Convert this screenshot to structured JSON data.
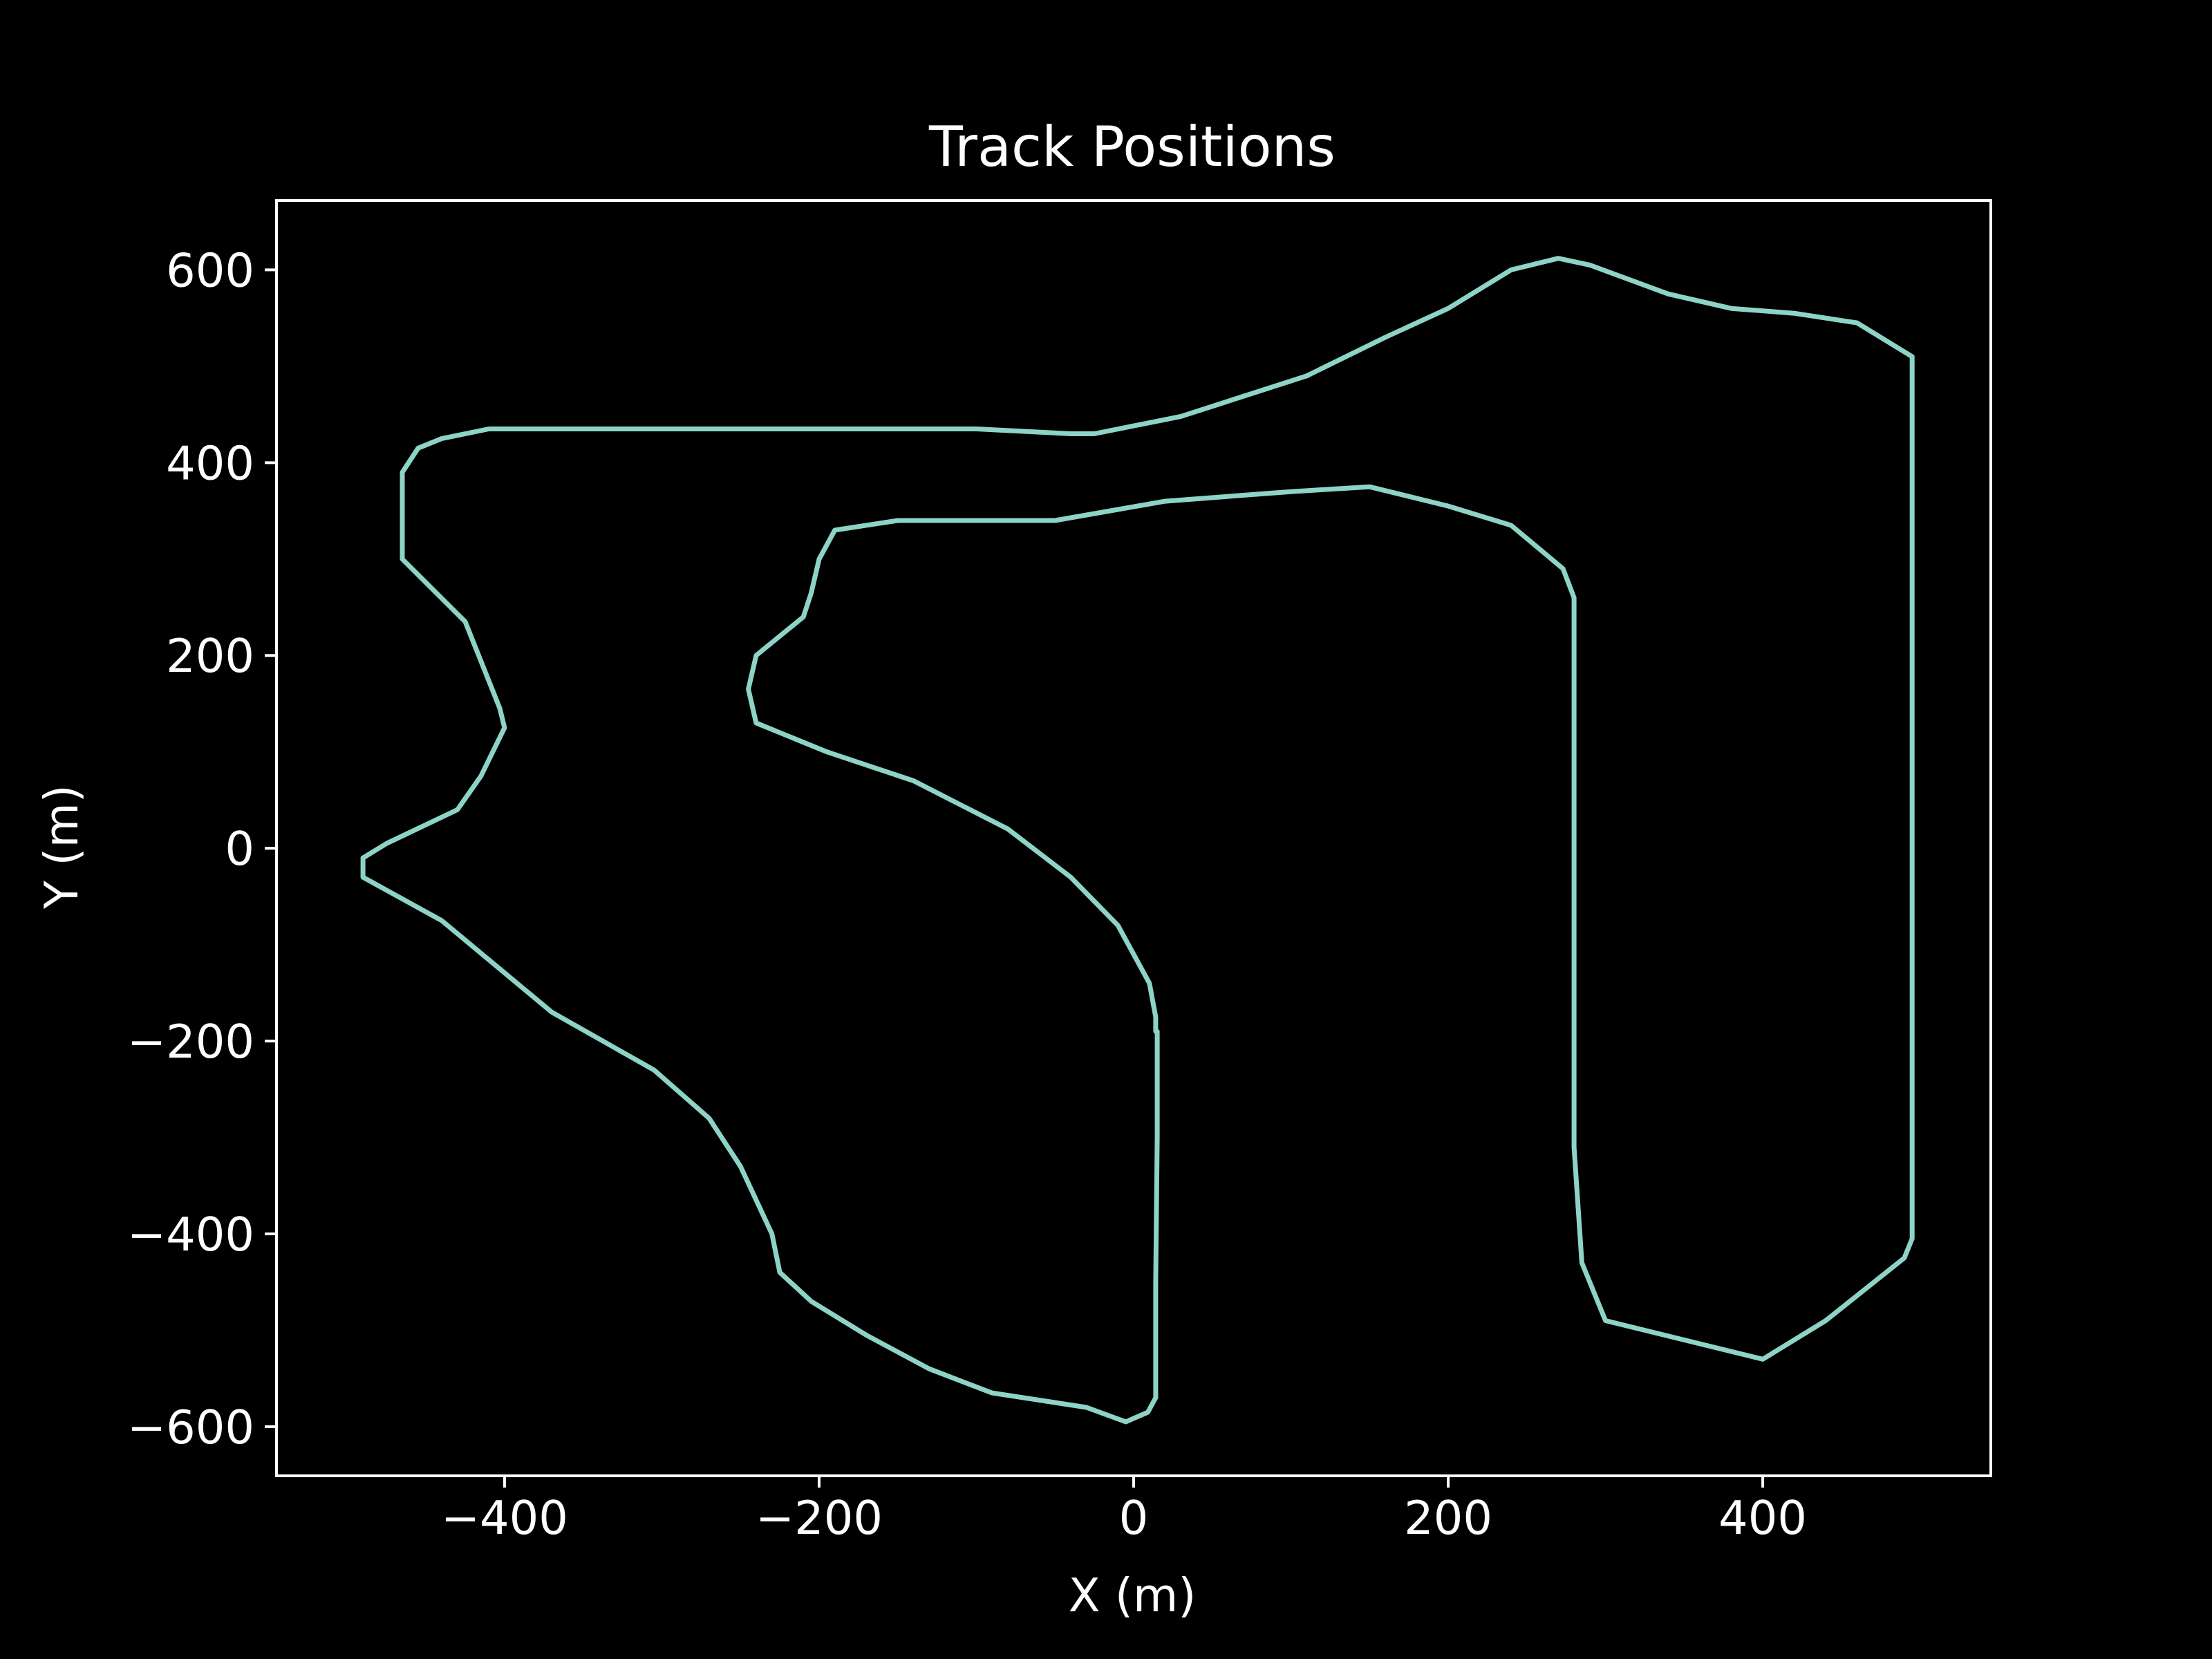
{
  "chart_data": {
    "type": "line",
    "title": "Track Positions",
    "xlabel": "X (m)",
    "ylabel": "Y (m)",
    "xlim": [
      -545,
      545
    ],
    "ylim": [
      -651,
      672
    ],
    "xticks": [
      -400,
      -200,
      0,
      200,
      400
    ],
    "yticks": [
      -600,
      -400,
      -200,
      0,
      200,
      400,
      600
    ],
    "xtick_labels": [
      "−400",
      "−200",
      "0",
      "200",
      "400"
    ],
    "ytick_labels": [
      "−600",
      "−400",
      "−200",
      "0",
      "200",
      "400",
      "600"
    ],
    "grid": false,
    "line_color": "#8dd3c7",
    "background_color": "#000000",
    "foreground_color": "#ffffff",
    "series": [
      {
        "x": [
          15,
          15,
          14,
          14,
          9,
          -5,
          -30,
          -90,
          -130,
          -170,
          -205,
          -225,
          -230,
          -250,
          -270,
          -305,
          -370,
          -440,
          -490,
          -490,
          -475,
          -430,
          -415,
          -400,
          -403,
          -425,
          -465,
          -465,
          -465,
          -455,
          -440,
          -410,
          -300,
          -100,
          -40,
          -25,
          30,
          110,
          160,
          200,
          240,
          270,
          290,
          340,
          380,
          420,
          460,
          495,
          495,
          495,
          495,
          490,
          440,
          400,
          300,
          285,
          280,
          280,
          280,
          280,
          273,
          240,
          200,
          150,
          100,
          20,
          -50,
          -100,
          -150,
          -190,
          -200,
          -205,
          -210,
          -240,
          -245,
          -240,
          -195,
          -140,
          -80,
          -40,
          -10,
          10,
          14,
          14
        ],
        "y": [
          -190,
          -300,
          -450,
          -570,
          -585,
          -595,
          -580,
          -565,
          -540,
          -505,
          -470,
          -440,
          -400,
          -330,
          -280,
          -230,
          -170,
          -75,
          -30,
          -10,
          5,
          40,
          75,
          125,
          145,
          235,
          300,
          350,
          390,
          415,
          425,
          435,
          435,
          435,
          430,
          430,
          448,
          490,
          530,
          560,
          600,
          612,
          605,
          575,
          560,
          555,
          545,
          510,
          400,
          0,
          -405,
          -425,
          -490,
          -530,
          -490,
          -430,
          -310,
          0,
          130,
          260,
          290,
          335,
          355,
          375,
          370,
          360,
          340,
          340,
          340,
          330,
          300,
          265,
          240,
          200,
          165,
          130,
          100,
          70,
          20,
          -30,
          -80,
          -140,
          -175,
          -190
        ]
      }
    ]
  }
}
